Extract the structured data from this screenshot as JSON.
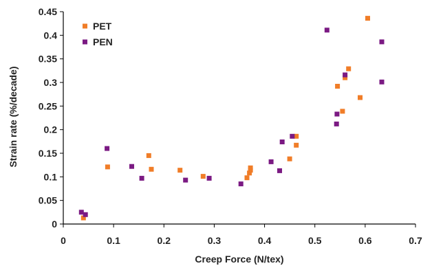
{
  "chart_data": {
    "type": "scatter",
    "xlabel": "Creep Force (N/tex)",
    "ylabel": "Strain rate (%/decade)",
    "xlim": [
      0,
      0.7
    ],
    "ylim": [
      0,
      0.45
    ],
    "x_ticks": [
      "0",
      "0.1",
      "0.2",
      "0.3",
      "0.4",
      "0.5",
      "0.6",
      "0.7"
    ],
    "y_ticks": [
      "0",
      "0.05",
      "0.1",
      "0.15",
      "0.2",
      "0.25",
      "0.3",
      "0.35",
      "0.4",
      "0.45"
    ],
    "grid": false,
    "legend_position": "top-left",
    "series": [
      {
        "name": "PET",
        "color": "#f07d28",
        "points": [
          {
            "x": 0.04,
            "y": 0.013
          },
          {
            "x": 0.088,
            "y": 0.121
          },
          {
            "x": 0.17,
            "y": 0.145
          },
          {
            "x": 0.175,
            "y": 0.116
          },
          {
            "x": 0.232,
            "y": 0.114
          },
          {
            "x": 0.278,
            "y": 0.101
          },
          {
            "x": 0.365,
            "y": 0.098
          },
          {
            "x": 0.37,
            "y": 0.108
          },
          {
            "x": 0.372,
            "y": 0.114
          },
          {
            "x": 0.372,
            "y": 0.119
          },
          {
            "x": 0.45,
            "y": 0.138
          },
          {
            "x": 0.463,
            "y": 0.167
          },
          {
            "x": 0.463,
            "y": 0.186
          },
          {
            "x": 0.545,
            "y": 0.292
          },
          {
            "x": 0.555,
            "y": 0.239
          },
          {
            "x": 0.56,
            "y": 0.31
          },
          {
            "x": 0.567,
            "y": 0.329
          },
          {
            "x": 0.59,
            "y": 0.268
          },
          {
            "x": 0.605,
            "y": 0.436
          }
        ]
      },
      {
        "name": "PEN",
        "color": "#7b1a83",
        "points": [
          {
            "x": 0.036,
            "y": 0.025
          },
          {
            "x": 0.044,
            "y": 0.02
          },
          {
            "x": 0.087,
            "y": 0.16
          },
          {
            "x": 0.136,
            "y": 0.122
          },
          {
            "x": 0.156,
            "y": 0.097
          },
          {
            "x": 0.243,
            "y": 0.093
          },
          {
            "x": 0.29,
            "y": 0.097
          },
          {
            "x": 0.353,
            "y": 0.085
          },
          {
            "x": 0.413,
            "y": 0.132
          },
          {
            "x": 0.43,
            "y": 0.113
          },
          {
            "x": 0.435,
            "y": 0.174
          },
          {
            "x": 0.455,
            "y": 0.186
          },
          {
            "x": 0.524,
            "y": 0.411
          },
          {
            "x": 0.543,
            "y": 0.212
          },
          {
            "x": 0.544,
            "y": 0.233
          },
          {
            "x": 0.56,
            "y": 0.316
          },
          {
            "x": 0.633,
            "y": 0.301
          },
          {
            "x": 0.633,
            "y": 0.386
          }
        ]
      }
    ]
  }
}
